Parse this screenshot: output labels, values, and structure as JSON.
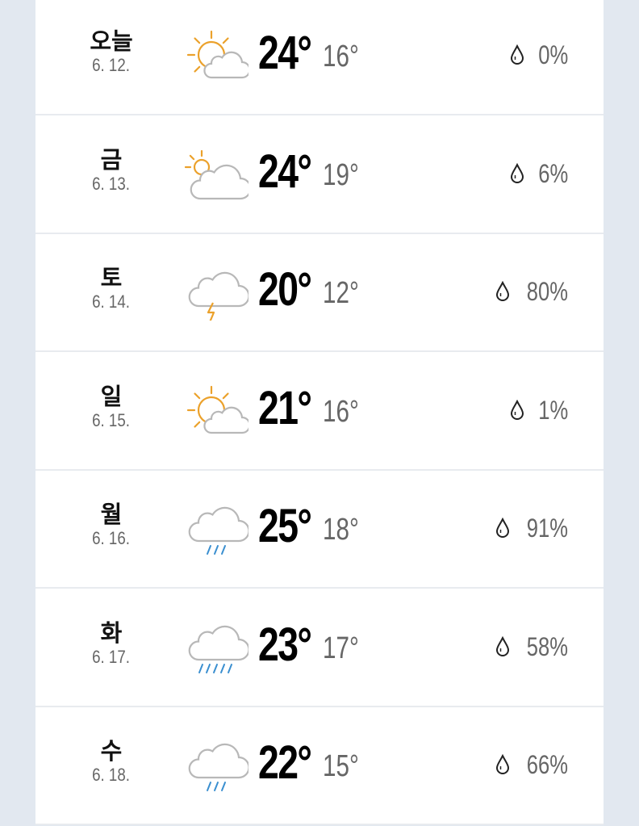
{
  "colors": {
    "sun": "#eba12b",
    "cloud": "#b8b8b8",
    "rain": "#3a8fd0",
    "bolt": "#eba12b"
  },
  "days": [
    {
      "name": "오늘",
      "date": "6. 12.",
      "icon": "sun-cloud-icon",
      "high": "24°",
      "low": "16°",
      "precip": "0%"
    },
    {
      "name": "금",
      "date": "6. 13.",
      "icon": "cloud-sun-icon",
      "high": "24°",
      "low": "19°",
      "precip": "6%"
    },
    {
      "name": "토",
      "date": "6. 14.",
      "icon": "thunder-cloud-icon",
      "high": "20°",
      "low": "12°",
      "precip": "80%"
    },
    {
      "name": "일",
      "date": "6. 15.",
      "icon": "sun-cloud-icon",
      "high": "21°",
      "low": "16°",
      "precip": "1%"
    },
    {
      "name": "월",
      "date": "6. 16.",
      "icon": "rain-cloud-icon",
      "high": "25°",
      "low": "18°",
      "precip": "91%"
    },
    {
      "name": "화",
      "date": "6. 17.",
      "icon": "heavy-rain-cloud-icon",
      "high": "23°",
      "low": "17°",
      "precip": "58%"
    },
    {
      "name": "수",
      "date": "6. 18.",
      "icon": "rain-cloud-icon",
      "high": "22°",
      "low": "15°",
      "precip": "66%"
    }
  ]
}
